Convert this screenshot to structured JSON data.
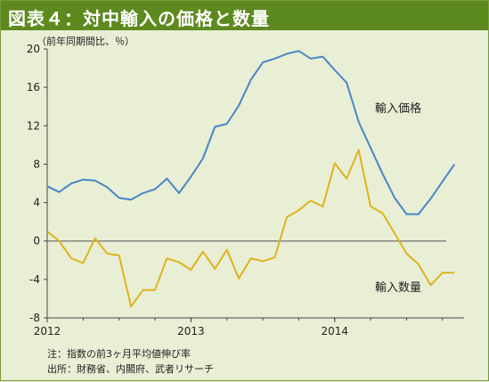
{
  "header": {
    "title": "図表４：対中輸入の価格と数量"
  },
  "footer": {
    "note": "注：指数の前3ヶ月平均値伸び率",
    "source": "出所：財務省、内閣府、武者リサーチ"
  },
  "chart_data": {
    "type": "line",
    "title": "図表４：対中輸入の価格と数量",
    "ylabel": "（前年同期間比、％）",
    "ylim": [
      -8,
      20
    ],
    "yticks": [
      -8,
      -4,
      0,
      4,
      8,
      12,
      16,
      20
    ],
    "xlim": [
      2012.0,
      2014.9
    ],
    "xticks": [
      {
        "label": "2012",
        "value": 2012.0
      },
      {
        "label": "2013",
        "value": 2013.0
      },
      {
        "label": "2014",
        "value": 2014.0
      }
    ],
    "grid": false,
    "zero_line": true,
    "legend": "inline labels",
    "series": [
      {
        "name": "輸入価格",
        "color": "#4a86c8",
        "x": [
          2012.0,
          2012.083,
          2012.167,
          2012.25,
          2012.333,
          2012.417,
          2012.5,
          2012.583,
          2012.667,
          2012.75,
          2012.833,
          2012.917,
          2013.0,
          2013.083,
          2013.167,
          2013.25,
          2013.333,
          2013.417,
          2013.5,
          2013.583,
          2013.667,
          2013.75,
          2013.833,
          2013.917,
          2014.0,
          2014.083,
          2014.167,
          2014.25,
          2014.333,
          2014.417,
          2014.5,
          2014.583,
          2014.667,
          2014.75,
          2014.833
        ],
        "values": [
          5.7,
          5.1,
          6.0,
          6.4,
          6.3,
          5.6,
          4.5,
          4.3,
          5.0,
          5.4,
          6.5,
          5.0,
          6.7,
          8.6,
          11.9,
          12.2,
          14.1,
          16.8,
          18.6,
          19.0,
          19.5,
          19.8,
          19.0,
          19.2,
          17.8,
          16.5,
          12.4,
          9.7,
          7.0,
          4.5,
          2.8,
          2.8,
          4.4,
          6.2,
          8.0
        ]
      },
      {
        "name": "輸入数量",
        "color": "#e0b21c",
        "x": [
          2012.0,
          2012.083,
          2012.167,
          2012.25,
          2012.333,
          2012.417,
          2012.5,
          2012.583,
          2012.667,
          2012.75,
          2012.833,
          2012.917,
          2013.0,
          2013.083,
          2013.167,
          2013.25,
          2013.333,
          2013.417,
          2013.5,
          2013.583,
          2013.667,
          2013.75,
          2013.833,
          2013.917,
          2014.0,
          2014.083,
          2014.167,
          2014.25,
          2014.333,
          2014.417,
          2014.5,
          2014.583,
          2014.667,
          2014.75,
          2014.833
        ],
        "values": [
          1.0,
          0.0,
          -1.8,
          -2.3,
          0.3,
          -1.3,
          -1.5,
          -6.8,
          -5.1,
          -5.1,
          -1.8,
          -2.2,
          -3.0,
          -1.1,
          -2.9,
          -0.9,
          -3.9,
          -1.8,
          -2.1,
          -1.7,
          2.5,
          3.2,
          4.2,
          3.6,
          8.1,
          6.5,
          9.5,
          3.6,
          2.9,
          0.8,
          -1.3,
          -2.4,
          -4.6,
          -3.3,
          -3.3
        ]
      }
    ]
  }
}
